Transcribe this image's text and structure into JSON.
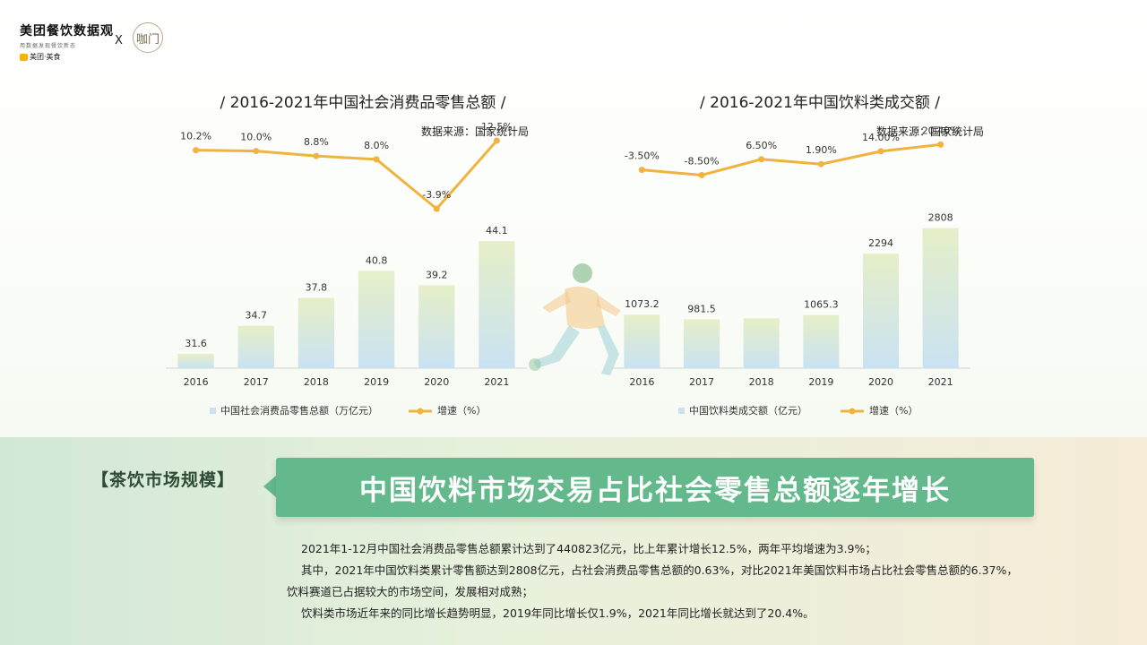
{
  "header": {
    "logo_title": "美团餐饮数据观",
    "logo_sub": "用数据发现餐饮新态",
    "logo_brand": "美团·美食",
    "x_mark": "X",
    "partner_icon": "咖门"
  },
  "left_chart": {
    "title": "/ 2016-2021年中国社会消费品零售总额 /",
    "source": "数据来源：国家统计局"
  },
  "right_chart": {
    "title": "/ 2016-2021年中国饮料类成交额 /",
    "source": "数据来源：国家统计局"
  },
  "chart_data": [
    {
      "type": "bar",
      "title": "/ 2016-2021年中国社会消费品零售总额 /",
      "categories": [
        "2016",
        "2017",
        "2018",
        "2019",
        "2020",
        "2021"
      ],
      "series": [
        {
          "name": "中国社会消费品零售总额（万亿元）",
          "values": [
            31.6,
            34.7,
            37.8,
            40.8,
            39.2,
            44.1
          ],
          "labels": [
            "31.6",
            "34.7",
            "37.8",
            "40.8",
            "39.2",
            "44.1"
          ]
        },
        {
          "name": "增速（%）",
          "type": "line",
          "values": [
            10.2,
            10.0,
            8.8,
            8.0,
            -3.9,
            12.5
          ],
          "labels": [
            "10.2%",
            "10.0%",
            "8.8%",
            "8.0%",
            "-3.9%",
            "12.5%"
          ]
        }
      ],
      "bar_ylim": [
        30,
        47
      ],
      "line_ylim": [
        -14,
        14
      ],
      "legend": "bottom",
      "grid": false
    },
    {
      "type": "bar",
      "title": "/ 2016-2021年中国饮料类成交额 /",
      "categories": [
        "2016",
        "2017",
        "2018",
        "2019",
        "2020",
        "2021"
      ],
      "series": [
        {
          "name": "中国饮料类成交额（亿元）",
          "values": [
            1073.2,
            981.5,
            1000,
            1065.3,
            2294,
            2808
          ],
          "labels": [
            "1073.2",
            "981.5",
            "",
            "1065.3",
            "2294",
            "2808"
          ]
        },
        {
          "name": "增速（%）",
          "type": "line",
          "values": [
            -3.5,
            -8.5,
            6.5,
            1.9,
            14.0,
            20.4
          ],
          "labels": [
            "-3.50%",
            "-8.50%",
            "6.50%",
            "1.90%",
            "14.00%",
            "20.40%"
          ]
        }
      ],
      "bar_ylim": [
        0,
        3070
      ],
      "line_ylim": [
        -80,
        30
      ],
      "legend": "bottom",
      "grid": false
    }
  ],
  "colors": {
    "bar_top": "#e6efc8",
    "bar_bottom": "#c9e2f2",
    "line": "#f0b340",
    "headline_bg": "#63b98c"
  },
  "section": {
    "label": "【茶饮市场规模】",
    "headline": "中国饮料市场交易占比社会零售总额逐年增长"
  },
  "body": {
    "p1": "2021年1-12月中国社会消费品零售总额累计达到了440823亿元，比上年累计增长12.5%，两年平均增速为3.9%；",
    "p2": "其中，2021年中国饮料类累计零售额达到2808亿元，占社会消费品零售总额的0.63%，对比2021年美国饮料市场占比社会零售总额的6.37%，",
    "p3": "饮料赛道已占据较大的市场空间，发展相对成熟；",
    "p4": "饮料类市场近年来的同比增长趋势明显，2019年同比增长仅1.9%，2021年同比增长就达到了20.4%。"
  }
}
